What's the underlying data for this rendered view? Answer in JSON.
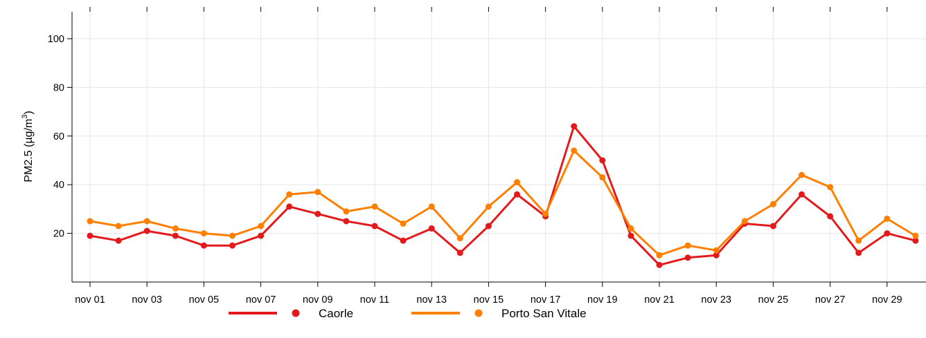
{
  "chart_data": {
    "type": "line",
    "title": "",
    "xlabel": "",
    "ylabel": {
      "main": "PM2.5 (µg/m",
      "superscript": "3",
      "close": ")"
    },
    "x": [
      "nov 01",
      "nov 02",
      "nov 03",
      "nov 04",
      "nov 05",
      "nov 06",
      "nov 07",
      "nov 08",
      "nov 09",
      "nov 10",
      "nov 11",
      "nov 12",
      "nov 13",
      "nov 14",
      "nov 15",
      "nov 16",
      "nov 17",
      "nov 18",
      "nov 19",
      "nov 20",
      "nov 21",
      "nov 22",
      "nov 23",
      "nov 24",
      "nov 25",
      "nov 26",
      "nov 27",
      "nov 28",
      "nov 29",
      "nov 30"
    ],
    "x_tick_labels": [
      "nov 01",
      "nov 03",
      "nov 05",
      "nov 07",
      "nov 09",
      "nov 11",
      "nov 13",
      "nov 15",
      "nov 17",
      "nov 19",
      "nov 21",
      "nov 23",
      "nov 25",
      "nov 27",
      "nov 29"
    ],
    "y_ticks": [
      20,
      40,
      60,
      80,
      100
    ],
    "ylim": [
      0,
      110
    ],
    "grid": true,
    "legend_position": "bottom",
    "series": [
      {
        "name": "Caorle",
        "color": "#e31a1c",
        "values": [
          19,
          17,
          21,
          19,
          15,
          15,
          19,
          31,
          28,
          25,
          23,
          17,
          22,
          12,
          23,
          36,
          27,
          64,
          50,
          19,
          7,
          10,
          11,
          24,
          23,
          36,
          27,
          12,
          20,
          17
        ]
      },
      {
        "name": "Porto San Vitale",
        "color": "#ff7f00",
        "values": [
          25,
          23,
          25,
          22,
          20,
          19,
          23,
          36,
          37,
          29,
          31,
          24,
          31,
          18,
          31,
          41,
          28,
          54,
          43,
          22,
          11,
          15,
          13,
          25,
          32,
          44,
          39,
          17,
          26,
          19
        ]
      }
    ]
  }
}
